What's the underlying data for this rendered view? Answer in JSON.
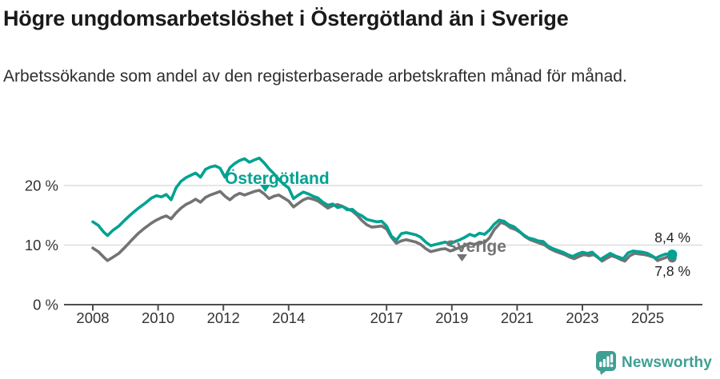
{
  "header": {
    "title": "Högre ungdomsarbetslöshet i Östergötland än i Sverige",
    "subtitle": "Arbetssökande som andel av den registerbaserade arbetskraften månad för månad."
  },
  "branding": {
    "logo_text": "Newsworthy",
    "logo_color": "#3f9f92",
    "logo_icon": "bar-chart-speech-bubble"
  },
  "chart_data": {
    "type": "line",
    "title": "Högre ungdomsarbetslöshet i Östergötland än i Sverige",
    "subtitle": "Arbetssökande som andel av den registerbaserade arbetskraften månad för månad.",
    "unit": "%",
    "grid": "horizontal-only",
    "legend_position": "inline-labels-on-lines",
    "x_axis": {
      "range": [
        2007.6,
        2026.2
      ],
      "tick_years": [
        2008,
        2010,
        2012,
        2014,
        2017,
        2019,
        2021,
        2023,
        2025
      ],
      "tick_labels": [
        "2008",
        "2010",
        "2012",
        "2014",
        "2017",
        "2019",
        "2021",
        "2023",
        "2025"
      ]
    },
    "y_axis": {
      "range": [
        0,
        27
      ],
      "ticks": [
        {
          "value": 0,
          "label": "0 %"
        },
        {
          "value": 10,
          "label": "10 %"
        },
        {
          "value": 20,
          "label": "20 %"
        }
      ]
    },
    "series": [
      {
        "name": "Sverige",
        "color": "#737373",
        "end_value_label": "7,8 %",
        "points": [
          [
            2008.0,
            9.5
          ],
          [
            2008.17,
            8.9
          ],
          [
            2008.33,
            8.0
          ],
          [
            2008.45,
            7.4
          ],
          [
            2008.6,
            7.9
          ],
          [
            2008.8,
            8.6
          ],
          [
            2009.0,
            9.7
          ],
          [
            2009.2,
            10.9
          ],
          [
            2009.4,
            12.0
          ],
          [
            2009.6,
            12.9
          ],
          [
            2009.8,
            13.7
          ],
          [
            2009.95,
            14.2
          ],
          [
            2010.1,
            14.6
          ],
          [
            2010.25,
            14.9
          ],
          [
            2010.4,
            14.4
          ],
          [
            2010.55,
            15.4
          ],
          [
            2010.7,
            16.2
          ],
          [
            2010.85,
            16.8
          ],
          [
            2011.0,
            17.2
          ],
          [
            2011.15,
            17.7
          ],
          [
            2011.3,
            17.2
          ],
          [
            2011.45,
            18.0
          ],
          [
            2011.6,
            18.4
          ],
          [
            2011.75,
            18.7
          ],
          [
            2011.9,
            19.0
          ],
          [
            2012.05,
            18.2
          ],
          [
            2012.2,
            17.6
          ],
          [
            2012.35,
            18.3
          ],
          [
            2012.5,
            18.7
          ],
          [
            2012.65,
            18.4
          ],
          [
            2012.8,
            18.7
          ],
          [
            2012.95,
            19.0
          ],
          [
            2013.1,
            19.2
          ],
          [
            2013.25,
            18.6
          ],
          [
            2013.4,
            17.8
          ],
          [
            2013.55,
            18.2
          ],
          [
            2013.7,
            18.4
          ],
          [
            2013.85,
            17.9
          ],
          [
            2014.0,
            17.4
          ],
          [
            2014.15,
            16.4
          ],
          [
            2014.3,
            17.0
          ],
          [
            2014.45,
            17.6
          ],
          [
            2014.6,
            17.9
          ],
          [
            2014.75,
            17.7
          ],
          [
            2014.9,
            17.4
          ],
          [
            2015.05,
            16.8
          ],
          [
            2015.2,
            16.2
          ],
          [
            2015.35,
            16.6
          ],
          [
            2015.5,
            16.8
          ],
          [
            2015.65,
            16.5
          ],
          [
            2015.8,
            16.1
          ],
          [
            2015.95,
            15.7
          ],
          [
            2016.1,
            15.0
          ],
          [
            2016.25,
            14.1
          ],
          [
            2016.4,
            13.4
          ],
          [
            2016.55,
            13.0
          ],
          [
            2016.7,
            13.1
          ],
          [
            2016.85,
            13.2
          ],
          [
            2017.0,
            12.7
          ],
          [
            2017.15,
            11.3
          ],
          [
            2017.3,
            10.3
          ],
          [
            2017.45,
            10.7
          ],
          [
            2017.6,
            10.9
          ],
          [
            2017.75,
            10.7
          ],
          [
            2017.9,
            10.5
          ],
          [
            2018.05,
            10.1
          ],
          [
            2018.2,
            9.4
          ],
          [
            2018.35,
            8.9
          ],
          [
            2018.5,
            9.1
          ],
          [
            2018.65,
            9.3
          ],
          [
            2018.8,
            9.4
          ],
          [
            2018.95,
            9.0
          ],
          [
            2019.1,
            9.3
          ],
          [
            2019.25,
            9.6
          ],
          [
            2019.4,
            9.9
          ],
          [
            2019.55,
            10.3
          ],
          [
            2019.7,
            10.1
          ],
          [
            2019.85,
            10.5
          ],
          [
            2020.0,
            10.4
          ],
          [
            2020.15,
            11.2
          ],
          [
            2020.3,
            12.6
          ],
          [
            2020.5,
            13.8
          ],
          [
            2020.65,
            13.5
          ],
          [
            2020.8,
            12.9
          ],
          [
            2020.95,
            12.6
          ],
          [
            2021.1,
            12.1
          ],
          [
            2021.25,
            11.4
          ],
          [
            2021.4,
            10.9
          ],
          [
            2021.55,
            10.6
          ],
          [
            2021.7,
            10.3
          ],
          [
            2021.85,
            10.0
          ],
          [
            2022.0,
            9.4
          ],
          [
            2022.15,
            9.0
          ],
          [
            2022.3,
            8.7
          ],
          [
            2022.45,
            8.4
          ],
          [
            2022.6,
            8.0
          ],
          [
            2022.75,
            7.7
          ],
          [
            2022.9,
            8.1
          ],
          [
            2023.05,
            8.4
          ],
          [
            2023.2,
            8.2
          ],
          [
            2023.35,
            8.4
          ],
          [
            2023.5,
            7.8
          ],
          [
            2023.6,
            7.3
          ],
          [
            2023.75,
            7.8
          ],
          [
            2023.9,
            8.2
          ],
          [
            2024.05,
            7.9
          ],
          [
            2024.2,
            7.5
          ],
          [
            2024.3,
            7.3
          ],
          [
            2024.45,
            8.2
          ],
          [
            2024.6,
            8.6
          ],
          [
            2024.75,
            8.5
          ],
          [
            2024.9,
            8.4
          ],
          [
            2025.05,
            8.2
          ],
          [
            2025.2,
            7.9
          ],
          [
            2025.3,
            7.4
          ],
          [
            2025.45,
            7.7
          ],
          [
            2025.6,
            8.0
          ],
          [
            2025.75,
            7.8
          ]
        ]
      },
      {
        "name": "Östergötland",
        "color": "#00a291",
        "end_value_label": "8,4 %",
        "points": [
          [
            2008.0,
            13.9
          ],
          [
            2008.17,
            13.3
          ],
          [
            2008.33,
            12.2
          ],
          [
            2008.45,
            11.6
          ],
          [
            2008.6,
            12.4
          ],
          [
            2008.8,
            13.2
          ],
          [
            2009.0,
            14.3
          ],
          [
            2009.2,
            15.3
          ],
          [
            2009.4,
            16.2
          ],
          [
            2009.6,
            17.0
          ],
          [
            2009.8,
            17.9
          ],
          [
            2009.95,
            18.3
          ],
          [
            2010.1,
            18.1
          ],
          [
            2010.25,
            18.5
          ],
          [
            2010.4,
            17.6
          ],
          [
            2010.55,
            19.6
          ],
          [
            2010.7,
            20.7
          ],
          [
            2010.85,
            21.3
          ],
          [
            2011.0,
            21.7
          ],
          [
            2011.15,
            22.1
          ],
          [
            2011.3,
            21.4
          ],
          [
            2011.45,
            22.7
          ],
          [
            2011.6,
            23.1
          ],
          [
            2011.75,
            23.3
          ],
          [
            2011.9,
            22.9
          ],
          [
            2012.05,
            21.4
          ],
          [
            2012.2,
            23.0
          ],
          [
            2012.35,
            23.7
          ],
          [
            2012.5,
            24.2
          ],
          [
            2012.65,
            24.5
          ],
          [
            2012.8,
            23.9
          ],
          [
            2012.95,
            24.3
          ],
          [
            2013.1,
            24.6
          ],
          [
            2013.25,
            23.8
          ],
          [
            2013.4,
            22.8
          ],
          [
            2013.55,
            22.0
          ],
          [
            2013.7,
            21.0
          ],
          [
            2013.85,
            20.2
          ],
          [
            2014.0,
            19.6
          ],
          [
            2014.15,
            17.8
          ],
          [
            2014.3,
            18.4
          ],
          [
            2014.45,
            18.9
          ],
          [
            2014.6,
            18.6
          ],
          [
            2014.75,
            18.2
          ],
          [
            2014.9,
            17.9
          ],
          [
            2015.05,
            17.2
          ],
          [
            2015.2,
            16.7
          ],
          [
            2015.35,
            16.9
          ],
          [
            2015.5,
            16.3
          ],
          [
            2015.65,
            16.5
          ],
          [
            2015.8,
            15.9
          ],
          [
            2015.95,
            16.0
          ],
          [
            2016.1,
            15.3
          ],
          [
            2016.25,
            14.9
          ],
          [
            2016.4,
            14.3
          ],
          [
            2016.55,
            14.1
          ],
          [
            2016.7,
            13.9
          ],
          [
            2016.85,
            14.0
          ],
          [
            2017.0,
            13.2
          ],
          [
            2017.15,
            11.5
          ],
          [
            2017.3,
            10.8
          ],
          [
            2017.45,
            11.9
          ],
          [
            2017.6,
            12.1
          ],
          [
            2017.75,
            11.9
          ],
          [
            2017.9,
            11.7
          ],
          [
            2018.05,
            11.3
          ],
          [
            2018.2,
            10.5
          ],
          [
            2018.35,
            9.9
          ],
          [
            2018.5,
            10.1
          ],
          [
            2018.65,
            10.3
          ],
          [
            2018.8,
            10.5
          ],
          [
            2018.95,
            10.2
          ],
          [
            2019.1,
            10.6
          ],
          [
            2019.25,
            10.9
          ],
          [
            2019.4,
            11.3
          ],
          [
            2019.55,
            11.8
          ],
          [
            2019.7,
            11.5
          ],
          [
            2019.85,
            12.0
          ],
          [
            2020.0,
            11.8
          ],
          [
            2020.15,
            12.5
          ],
          [
            2020.3,
            13.5
          ],
          [
            2020.45,
            14.2
          ],
          [
            2020.6,
            14.0
          ],
          [
            2020.75,
            13.4
          ],
          [
            2020.9,
            13.1
          ],
          [
            2021.05,
            12.4
          ],
          [
            2021.2,
            11.7
          ],
          [
            2021.35,
            11.2
          ],
          [
            2021.5,
            11.0
          ],
          [
            2021.65,
            10.7
          ],
          [
            2021.8,
            10.6
          ],
          [
            2021.95,
            9.8
          ],
          [
            2022.1,
            9.4
          ],
          [
            2022.25,
            9.1
          ],
          [
            2022.4,
            8.8
          ],
          [
            2022.55,
            8.4
          ],
          [
            2022.7,
            8.1
          ],
          [
            2022.85,
            8.5
          ],
          [
            2023.0,
            8.8
          ],
          [
            2023.15,
            8.6
          ],
          [
            2023.3,
            8.8
          ],
          [
            2023.45,
            8.1
          ],
          [
            2023.55,
            7.6
          ],
          [
            2023.7,
            8.1
          ],
          [
            2023.85,
            8.6
          ],
          [
            2024.0,
            8.2
          ],
          [
            2024.15,
            7.9
          ],
          [
            2024.25,
            7.7
          ],
          [
            2024.4,
            8.7
          ],
          [
            2024.55,
            9.0
          ],
          [
            2024.7,
            8.9
          ],
          [
            2024.85,
            8.8
          ],
          [
            2025.0,
            8.6
          ],
          [
            2025.1,
            8.3
          ],
          [
            2025.25,
            7.8
          ],
          [
            2025.4,
            8.2
          ],
          [
            2025.55,
            8.5
          ],
          [
            2025.75,
            8.4
          ]
        ]
      }
    ]
  }
}
